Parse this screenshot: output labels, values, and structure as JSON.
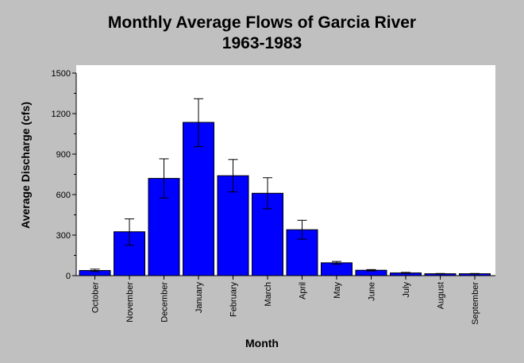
{
  "chart_data": {
    "type": "bar",
    "title": [
      "Monthly Average Flows of Garcia River",
      "1963-1983"
    ],
    "xlabel": "Month",
    "ylabel": "Average Discharge (cfs)",
    "categories": [
      "October",
      "November",
      "December",
      "January",
      "February",
      "March",
      "April",
      "May",
      "June",
      "July",
      "August",
      "September"
    ],
    "values": [
      38,
      325,
      720,
      1135,
      740,
      610,
      340,
      95,
      40,
      20,
      14,
      14
    ],
    "error_low": [
      30,
      225,
      575,
      955,
      620,
      495,
      270,
      85,
      35,
      17,
      12,
      12
    ],
    "error_high": [
      48,
      420,
      865,
      1310,
      860,
      725,
      410,
      105,
      45,
      24,
      16,
      16
    ],
    "ylim": [
      0,
      1500
    ],
    "yticks": [
      0,
      300,
      600,
      900,
      1200,
      1500
    ],
    "grid": false,
    "legend": "none",
    "bar_color": "#0000ff",
    "plot_background": "#ffffff"
  }
}
